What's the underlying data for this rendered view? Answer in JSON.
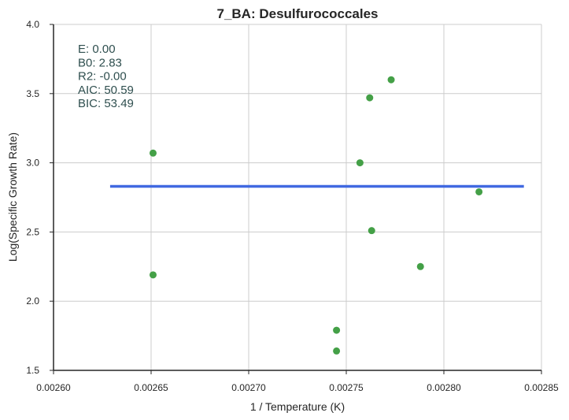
{
  "chart_data": {
    "type": "scatter",
    "title": "7_BA: Desulfurococcales",
    "xlabel": "1 / Temperature (K)",
    "ylabel": "Log(Specific Growth Rate)",
    "xlim": [
      0.0026,
      0.00285
    ],
    "ylim": [
      1.5,
      4.0
    ],
    "x_ticks": [
      "0.00260",
      "0.00265",
      "0.00270",
      "0.00275",
      "0.00280",
      "0.00285"
    ],
    "y_ticks": [
      "1.5",
      "2.0",
      "2.5",
      "3.0",
      "3.5",
      "4.0"
    ],
    "grid": true,
    "series": [
      {
        "type": "scatter",
        "color": "#44a047",
        "points": [
          {
            "x": 0.002651,
            "y": 3.07
          },
          {
            "x": 0.002651,
            "y": 2.19
          },
          {
            "x": 0.002745,
            "y": 1.79
          },
          {
            "x": 0.002745,
            "y": 1.64
          },
          {
            "x": 0.002757,
            "y": 3.0
          },
          {
            "x": 0.002762,
            "y": 3.47
          },
          {
            "x": 0.002763,
            "y": 2.51
          },
          {
            "x": 0.002773,
            "y": 3.6
          },
          {
            "x": 0.002788,
            "y": 2.25
          },
          {
            "x": 0.002818,
            "y": 2.79
          }
        ]
      },
      {
        "type": "line",
        "color": "#4169e1",
        "points": [
          {
            "x": 0.002629,
            "y": 2.83
          },
          {
            "x": 0.002841,
            "y": 2.83
          }
        ]
      }
    ],
    "annotations": [
      "E:  0.00",
      "B0:  2.83",
      "R2:  -0.00",
      "AIC: 50.59",
      "BIC: 53.49"
    ]
  }
}
